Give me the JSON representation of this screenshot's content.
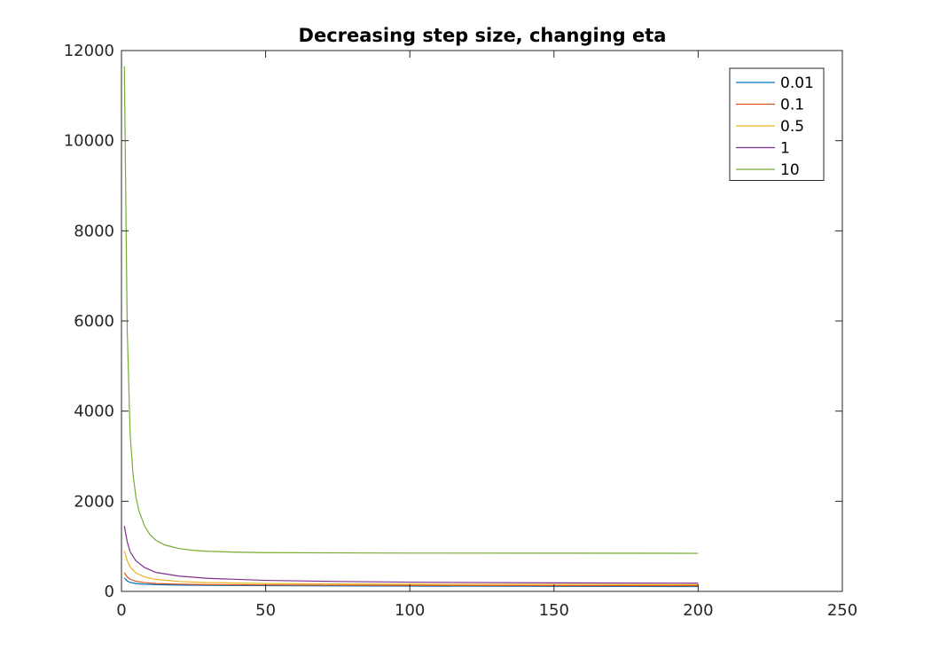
{
  "chart_data": {
    "type": "line",
    "title": "Decreasing step size, changing eta",
    "xlabel": "",
    "ylabel": "",
    "xlim": [
      0,
      250
    ],
    "ylim": [
      0,
      12000
    ],
    "xticks": [
      0,
      50,
      100,
      150,
      200,
      250
    ],
    "xtick_labels": [
      "0",
      "50",
      "100",
      "150",
      "200",
      "250"
    ],
    "yticks": [
      0,
      2000,
      4000,
      6000,
      8000,
      10000,
      12000
    ],
    "ytick_labels": [
      "0",
      "2000",
      "4000",
      "6000",
      "8000",
      "10000",
      "12000"
    ],
    "grid": false,
    "legend_position": "top-right",
    "series": [
      {
        "name": "0.01",
        "color": "#0072BD",
        "x": [
          1,
          2,
          3,
          5,
          8,
          12,
          20,
          30,
          50,
          75,
          100,
          150,
          200
        ],
        "y": [
          300,
          230,
          200,
          175,
          160,
          150,
          140,
          135,
          128,
          122,
          118,
          112,
          108
        ]
      },
      {
        "name": "0.1",
        "color": "#D95319",
        "x": [
          1,
          2,
          3,
          5,
          8,
          12,
          20,
          30,
          50,
          75,
          100,
          150,
          200
        ],
        "y": [
          420,
          320,
          270,
          225,
          195,
          175,
          160,
          150,
          142,
          137,
          133,
          128,
          125
        ]
      },
      {
        "name": "0.5",
        "color": "#EDB120",
        "x": [
          1,
          2,
          3,
          5,
          8,
          12,
          20,
          30,
          50,
          75,
          100,
          150,
          200
        ],
        "y": [
          900,
          680,
          540,
          410,
          320,
          265,
          220,
          195,
          175,
          165,
          160,
          155,
          150
        ]
      },
      {
        "name": "1",
        "color": "#7E2F8E",
        "x": [
          1,
          2,
          3,
          5,
          8,
          12,
          20,
          30,
          50,
          75,
          100,
          150,
          200
        ],
        "y": [
          1450,
          1100,
          880,
          680,
          530,
          420,
          340,
          290,
          245,
          220,
          205,
          190,
          182
        ]
      },
      {
        "name": "10",
        "color": "#77AC30",
        "x": [
          1,
          2,
          3,
          4,
          5,
          6,
          8,
          10,
          12,
          15,
          20,
          25,
          30,
          40,
          50,
          75,
          100,
          150,
          200
        ],
        "y": [
          11650,
          5800,
          3500,
          2600,
          2100,
          1800,
          1450,
          1250,
          1130,
          1030,
          950,
          910,
          890,
          870,
          860,
          855,
          850,
          848,
          845
        ]
      }
    ]
  }
}
